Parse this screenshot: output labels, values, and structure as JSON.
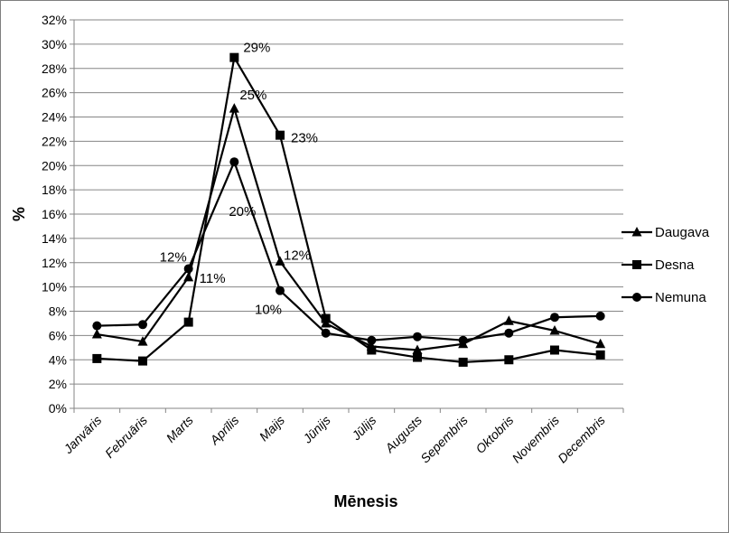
{
  "chart_data": {
    "type": "line",
    "title": "",
    "xlabel": "Mēnesis",
    "ylabel": "%",
    "ylim": [
      0,
      32
    ],
    "ytick_step": 2,
    "ytick_labels": [
      "0%",
      "2%",
      "4%",
      "6%",
      "8%",
      "10%",
      "12%",
      "14%",
      "16%",
      "18%",
      "20%",
      "22%",
      "24%",
      "26%",
      "28%",
      "30%",
      "32%"
    ],
    "categories": [
      "Janvāris",
      "Februāris",
      "Marts",
      "Aprīlis",
      "Maijs",
      "Jūnijs",
      "Jūlijs",
      "Augusts",
      "Sepembris",
      "Oktobris",
      "Novembris",
      "Decembris"
    ],
    "grid": "horizontal",
    "legend_position": "right",
    "series": [
      {
        "name": "Daugava",
        "marker": "triangle",
        "values": [
          6.1,
          5.5,
          10.8,
          24.7,
          12.1,
          7.0,
          5.1,
          4.8,
          5.3,
          7.2,
          6.4,
          5.3
        ]
      },
      {
        "name": "Desna",
        "marker": "square",
        "values": [
          4.1,
          3.9,
          7.1,
          28.9,
          22.5,
          7.4,
          4.8,
          4.2,
          3.8,
          4.0,
          4.8,
          4.4
        ]
      },
      {
        "name": "Nemuna",
        "marker": "circle",
        "values": [
          6.8,
          6.9,
          11.5,
          20.3,
          9.7,
          6.2,
          5.6,
          5.9,
          5.6,
          6.2,
          7.5,
          7.6
        ]
      }
    ],
    "data_labels": [
      {
        "text": "29%",
        "series": "Desna",
        "category": "Aprīlis"
      },
      {
        "text": "25%",
        "series": "Daugava",
        "category": "Aprīlis"
      },
      {
        "text": "20%",
        "series": "Nemuna",
        "category": "Aprīlis"
      },
      {
        "text": "23%",
        "series": "Desna",
        "category": "Maijs"
      },
      {
        "text": "12%",
        "series": "Daugava",
        "category": "Maijs"
      },
      {
        "text": "10%",
        "series": "Nemuna",
        "category": "Maijs"
      },
      {
        "text": "12%",
        "series": "Nemuna",
        "category": "Marts"
      },
      {
        "text": "11%",
        "series": "Daugava",
        "category": "Marts"
      }
    ],
    "line_color": "#000000"
  }
}
